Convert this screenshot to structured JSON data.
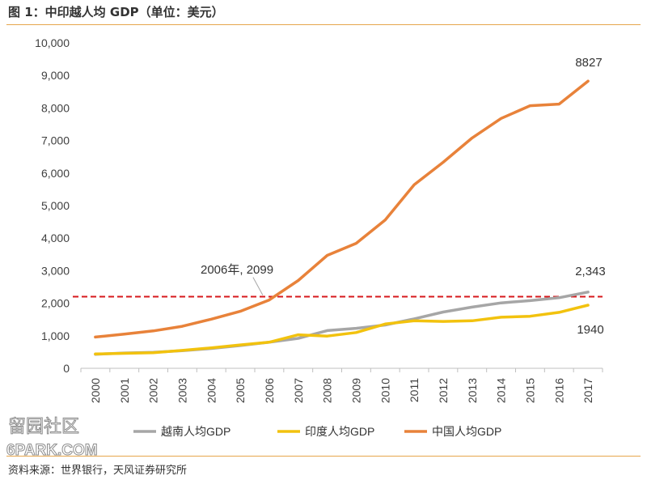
{
  "figure": {
    "title": "图 1：中印越人均 GDP（单位：美元）",
    "source": "资料来源：世界银行，天风证券研究所",
    "watermark": {
      "line1": "留园社区",
      "line2": "6PARK.COM"
    }
  },
  "colors": {
    "vietnam": "#a6a6a6",
    "india": "#f2c20e",
    "china": "#e8823a",
    "reference_line": "#d7191c",
    "rule": "#e6a64c"
  },
  "chart_data": {
    "type": "line",
    "title": "",
    "xlabel": "",
    "ylabel": "",
    "x": [
      "2000",
      "2001",
      "2002",
      "2003",
      "2004",
      "2005",
      "2006",
      "2007",
      "2008",
      "2009",
      "2010",
      "2011",
      "2012",
      "2013",
      "2014",
      "2015",
      "2016",
      "2017"
    ],
    "ylim": [
      0,
      10000
    ],
    "yticks": [
      0,
      1000,
      2000,
      3000,
      4000,
      5000,
      6000,
      7000,
      8000,
      9000,
      10000
    ],
    "ytick_labels": [
      "0",
      "1,000",
      "2,000",
      "3,000",
      "4,000",
      "5,000",
      "6,000",
      "7,000",
      "8,000",
      "9,000",
      "10,000"
    ],
    "grid": false,
    "legend_position": "bottom",
    "series": [
      {
        "name": "越南人均GDP",
        "color": "#a6a6a6",
        "values": [
          430,
          470,
          490,
          540,
          610,
          700,
          800,
          920,
          1160,
          1230,
          1330,
          1520,
          1730,
          1880,
          2010,
          2080,
          2170,
          2343
        ]
      },
      {
        "name": "印度人均GDP",
        "color": "#f2c20e",
        "values": [
          440,
          460,
          480,
          550,
          630,
          720,
          800,
          1030,
          990,
          1100,
          1360,
          1460,
          1440,
          1460,
          1570,
          1600,
          1720,
          1940
        ]
      },
      {
        "name": "中国人均GDP",
        "color": "#e8823a",
        "values": [
          960,
          1050,
          1150,
          1290,
          1510,
          1750,
          2099,
          2700,
          3470,
          3840,
          4560,
          5640,
          6330,
          7080,
          7680,
          8070,
          8120,
          8827
        ]
      }
    ],
    "reference_line": {
      "y": 2200,
      "style": "dashed"
    },
    "annotations": [
      {
        "label": "2006年, 2099",
        "x": "2006",
        "y": 2099,
        "series": "中国人均GDP"
      },
      {
        "label": "8827",
        "x": "2017",
        "y": 8827,
        "series": "中国人均GDP"
      },
      {
        "label": "2,343",
        "x": "2017",
        "y": 2343,
        "series": "越南人均GDP"
      },
      {
        "label": "1940",
        "x": "2017",
        "y": 1940,
        "series": "印度人均GDP"
      }
    ]
  }
}
